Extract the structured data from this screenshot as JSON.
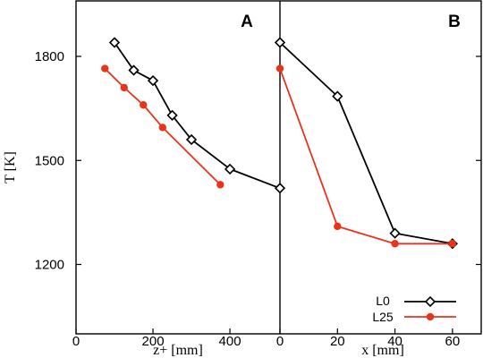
{
  "chart_data": [
    {
      "type": "line",
      "panel_label": "A",
      "xlabel": "z+ [mm]",
      "ylabel": "T [K]",
      "xlim": [
        0,
        530
      ],
      "ylim": [
        1000,
        1960
      ],
      "xticks": [
        0,
        200,
        400
      ],
      "yticks": [
        1200,
        1500,
        1800
      ],
      "series": [
        {
          "name": "L0",
          "color": "#000000",
          "marker": "diamond",
          "points": [
            [
              100,
              1840
            ],
            [
              150,
              1760
            ],
            [
              200,
              1730
            ],
            [
              250,
              1630
            ],
            [
              300,
              1560
            ],
            [
              400,
              1475
            ],
            [
              530,
              1420
            ]
          ]
        },
        {
          "name": "L25",
          "color": "#e8351a",
          "marker": "circle",
          "points": [
            [
              75,
              1765
            ],
            [
              125,
              1710
            ],
            [
              175,
              1660
            ],
            [
              225,
              1595
            ],
            [
              375,
              1430
            ]
          ]
        }
      ]
    },
    {
      "type": "line",
      "panel_label": "B",
      "xlabel": "x [mm]",
      "xlim": [
        0,
        70
      ],
      "ylim": [
        1000,
        1960
      ],
      "xticks": [
        0,
        20,
        40,
        60
      ],
      "series": [
        {
          "name": "L0",
          "color": "#000000",
          "marker": "diamond",
          "points": [
            [
              0,
              1840
            ],
            [
              20,
              1685
            ],
            [
              40,
              1290
            ],
            [
              60,
              1260
            ]
          ]
        },
        {
          "name": "L25",
          "color": "#e8351a",
          "marker": "circle",
          "points": [
            [
              0,
              1765
            ],
            [
              20,
              1310
            ],
            [
              40,
              1260
            ],
            [
              60,
              1260
            ]
          ]
        }
      ]
    }
  ],
  "legend": {
    "position": "bottom-right",
    "entries": [
      {
        "label": "L0",
        "color": "#000000",
        "marker": "diamond"
      },
      {
        "label": "L25",
        "color": "#e8351a",
        "marker": "circle"
      }
    ]
  }
}
